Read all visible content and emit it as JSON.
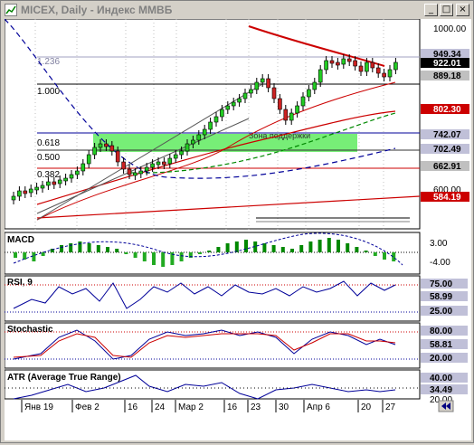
{
  "window": {
    "title": "MICEX, Daily - Индекс ММВБ",
    "minimize_glyph": "_",
    "maximize_glyph": "□",
    "close_glyph": "×"
  },
  "main": {
    "price_labels": [
      "1000.00",
      "949.34",
      "922.01",
      "889.18",
      "802.30",
      "742.07",
      "702.49",
      "662.91",
      "600.00",
      "584.19"
    ],
    "tag_colors": {
      "949.34": "#c0c0d8",
      "922.01": "#000000",
      "889.18": "#c0c0c0",
      "802.30": "#cc0000",
      "742.07": "#c0c0d8",
      "702.49": "#c0c0d8",
      "662.91": "#c0c0c0",
      "584.19": "#cc0000"
    },
    "fibo": {
      "l1236": "1.236",
      "l1000": "1.000",
      "l0618": "0.618",
      "l0500": "0.500",
      "l0382": "0.382"
    },
    "support_zone_label": "Зона поддержки"
  },
  "indicators": {
    "macd": {
      "title": "MACD",
      "levels": [
        "3.00",
        "-4.00"
      ]
    },
    "rsi": {
      "title": "RSI, 9",
      "levels": [
        "75.00",
        "58.99",
        "25.00"
      ]
    },
    "stochastic": {
      "title": "Stochastic",
      "levels": [
        "80.00",
        "58.81",
        "20.00"
      ]
    },
    "atr": {
      "title": "ATR (Average True Range)",
      "levels": [
        "40.00",
        "34.49",
        "20.00"
      ]
    }
  },
  "x_axis": [
    "Янв 19",
    "Фев 2",
    "16",
    "24",
    "Мар 2",
    "16",
    "23",
    "30",
    "Апр 6",
    "20",
    "27"
  ],
  "colors": {
    "up": "#22cc22",
    "down": "#cc2222",
    "zone": "#77ee77",
    "ma_red": "#cc0000",
    "ma_blue": "#000099",
    "ma_green": "#008800"
  }
}
